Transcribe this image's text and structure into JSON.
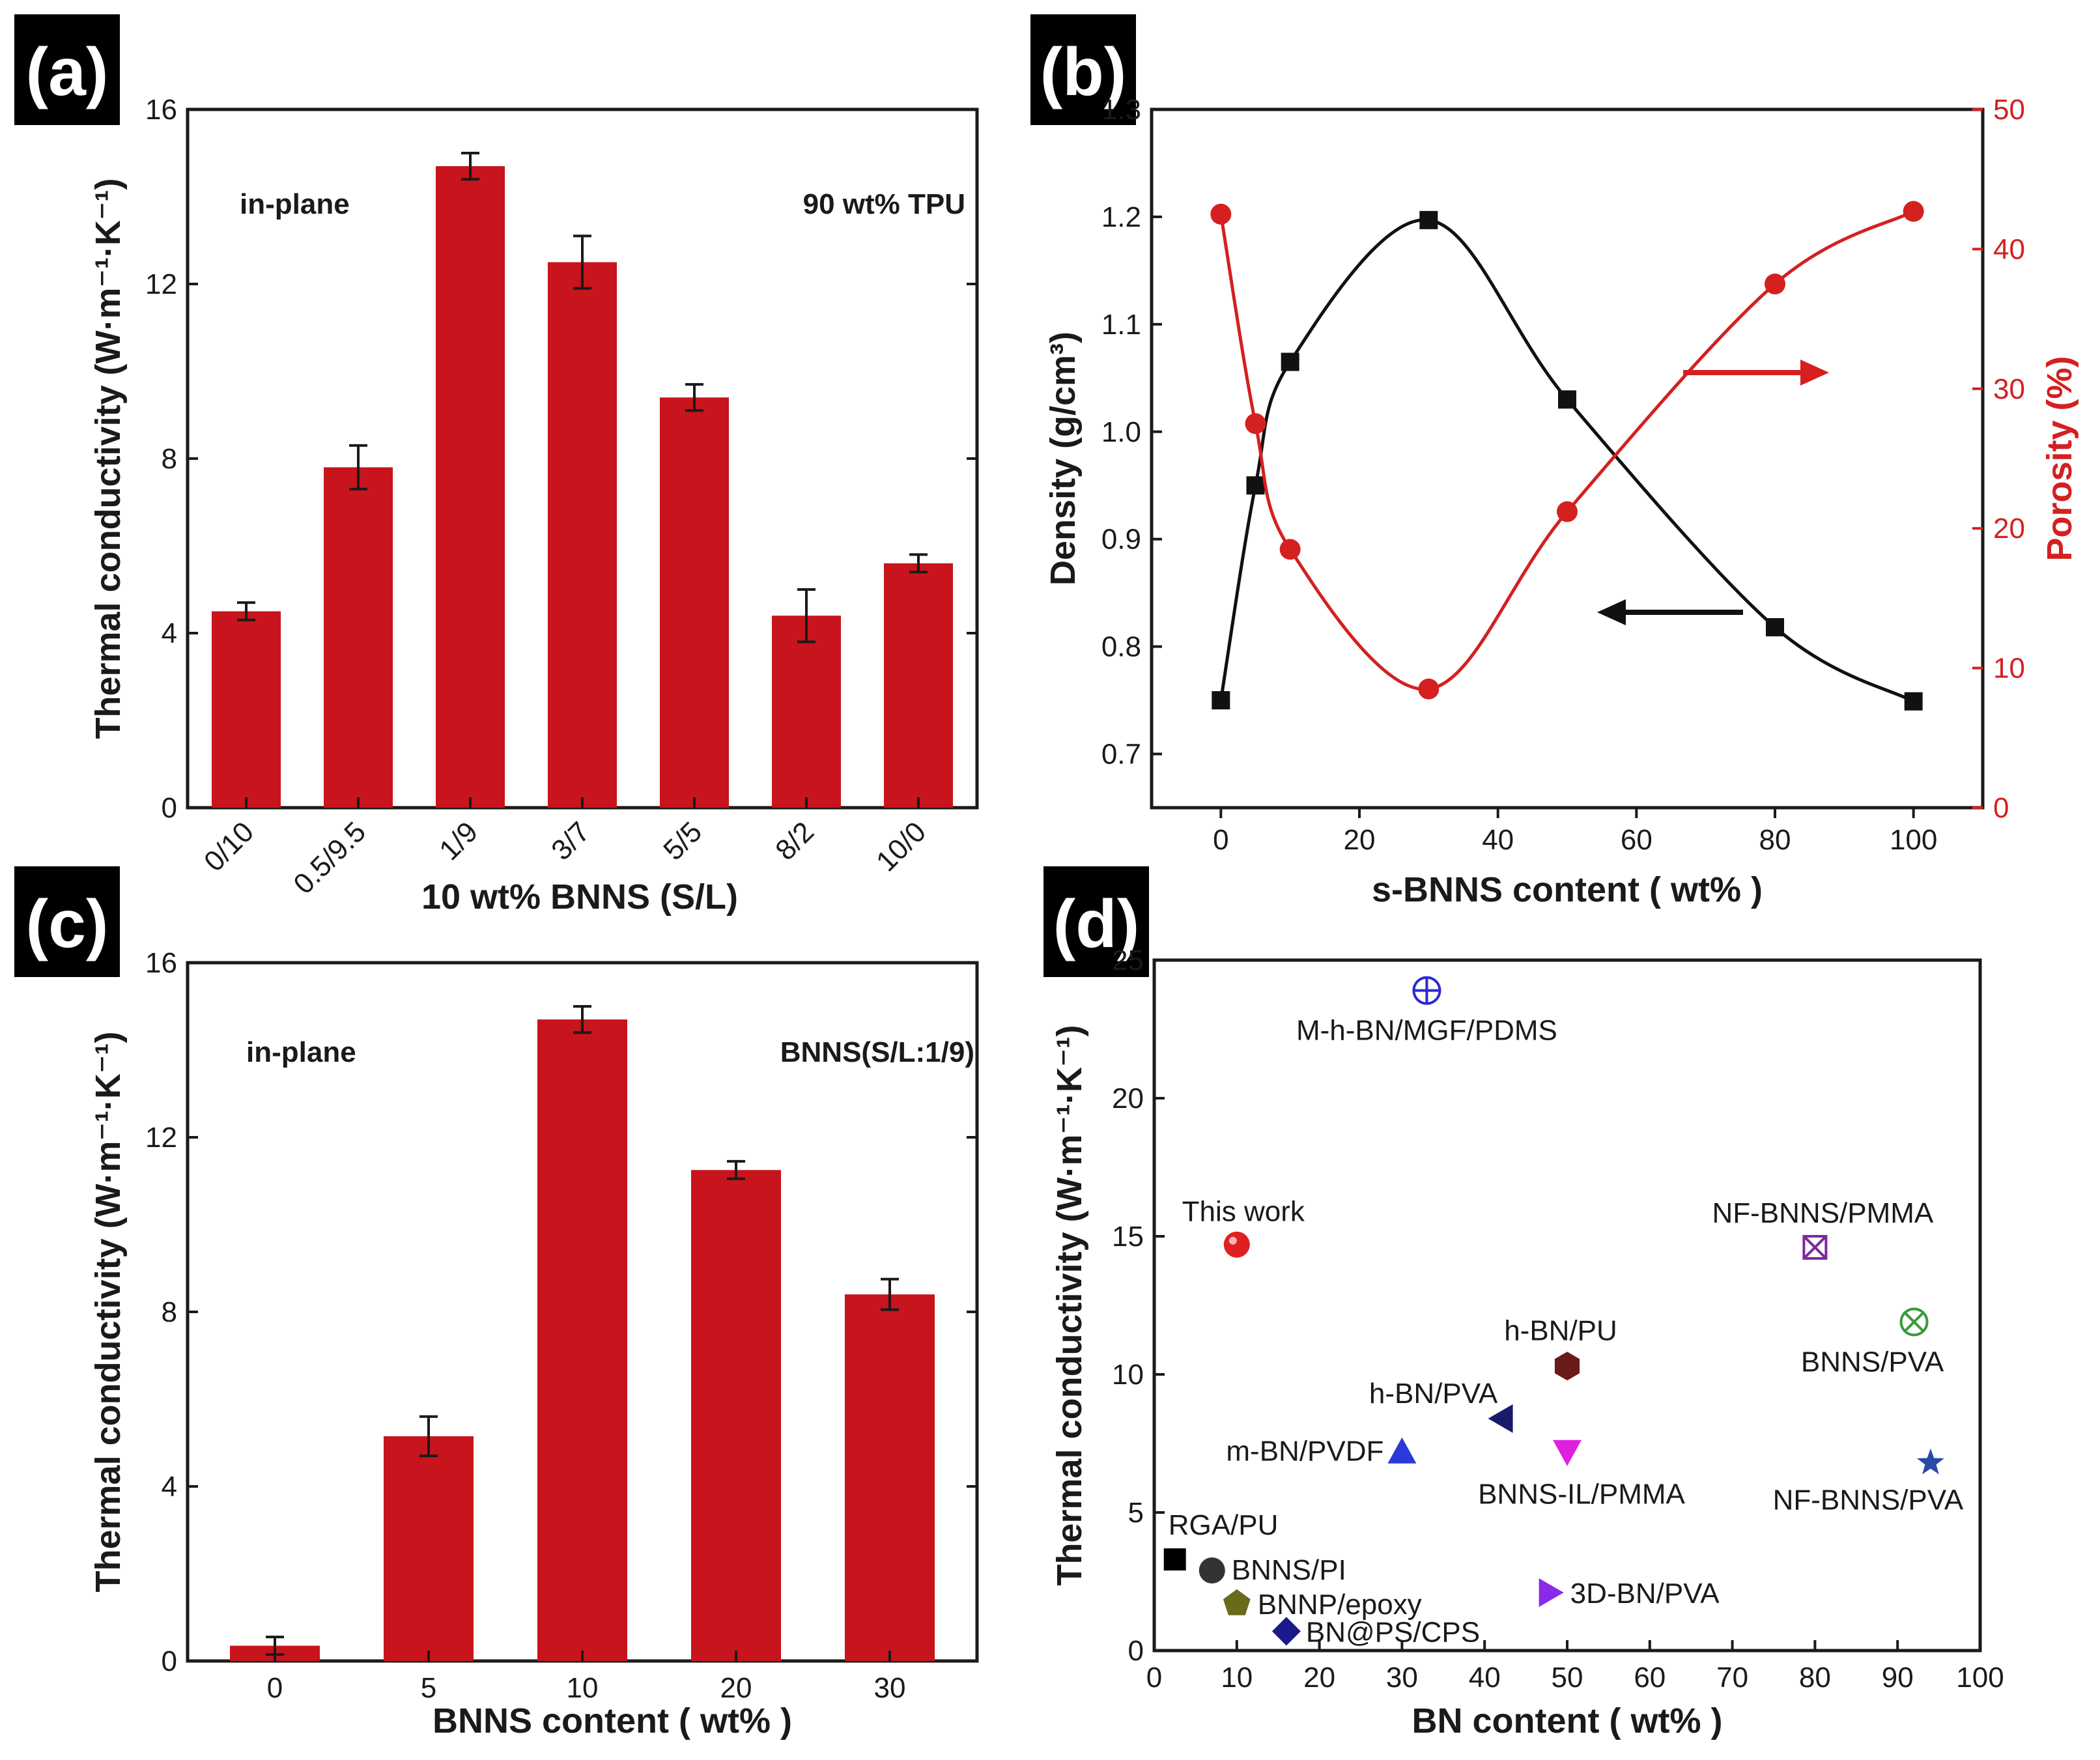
{
  "figure": {
    "panel_labels": [
      "(a)",
      "(b)",
      "(c)",
      "(d)"
    ]
  },
  "colors": {
    "bar": "#c8141c",
    "red_series": "#d42020",
    "black_series": "#111111",
    "panel_label_bg": "#000000"
  },
  "chart_data": [
    {
      "panel": "(a)",
      "type": "bar",
      "categories": [
        "0/10",
        "0.5/9.5",
        "1/9",
        "3/7",
        "5/5",
        "8/2",
        "10/0"
      ],
      "values": [
        4.5,
        7.8,
        14.7,
        12.5,
        9.4,
        4.4,
        5.6
      ],
      "errors": [
        0.2,
        0.5,
        0.3,
        0.6,
        0.3,
        0.6,
        0.2
      ],
      "xlabel": "10 wt% BNNS (S/L)",
      "ylabel": "Thermal conductivity (W·m⁻¹·K⁻¹)",
      "ylim": [
        0,
        16
      ],
      "yticks": [
        0,
        4,
        8,
        12,
        16
      ],
      "annotations": [
        "in-plane",
        "90 wt% TPU"
      ]
    },
    {
      "panel": "(b)",
      "type": "line",
      "x": [
        0,
        5,
        10,
        30,
        50,
        80,
        100
      ],
      "series": [
        {
          "name": "Density",
          "axis": "left",
          "values": [
            0.75,
            0.95,
            1.065,
            1.197,
            1.03,
            0.818,
            0.749
          ]
        },
        {
          "name": "Porosity",
          "axis": "right",
          "values": [
            42.5,
            27.5,
            18.5,
            8.5,
            21.2,
            37.5,
            42.7
          ]
        }
      ],
      "xlabel": "s-BNNS content ( wt% )",
      "ylabel_left": "Density (g/cm³)",
      "ylabel_right": "Porosity (%)",
      "xlim": [
        -10,
        110
      ],
      "xticks": [
        0,
        20,
        40,
        60,
        80,
        100
      ],
      "ylim_left": [
        0.65,
        1.3
      ],
      "yticks_left": [
        "0.7",
        "0.8",
        "0.9",
        "1.0",
        "1.1",
        "1.2",
        "1.3"
      ],
      "ylim_right": [
        0,
        50
      ],
      "yticks_right": [
        0,
        10,
        20,
        30,
        40,
        50
      ]
    },
    {
      "panel": "(c)",
      "type": "bar",
      "categories": [
        "0",
        "5",
        "10",
        "20",
        "30"
      ],
      "values": [
        0.35,
        5.15,
        14.7,
        11.25,
        8.4
      ],
      "errors": [
        0.2,
        0.45,
        0.3,
        0.2,
        0.35
      ],
      "xlabel": "BNNS content ( wt% )",
      "ylabel": "Thermal conductivity (W·m⁻¹·K⁻¹)",
      "ylim": [
        0,
        16
      ],
      "yticks": [
        0,
        4,
        8,
        12,
        16
      ],
      "annotations": [
        "in-plane",
        "BNNS(S/L:1/9)"
      ]
    },
    {
      "panel": "(d)",
      "type": "scatter",
      "xlabel": "BN content ( wt% )",
      "ylabel": "Thermal conductivity (W·m⁻¹·K⁻¹)",
      "xlim": [
        0,
        100
      ],
      "xticks": [
        0,
        10,
        20,
        30,
        40,
        50,
        60,
        70,
        80,
        90,
        100
      ],
      "ylim": [
        0,
        25
      ],
      "yticks": [
        0,
        5,
        10,
        15,
        20,
        25
      ],
      "points": [
        {
          "label": "M-h-BN/MGF/PDMS",
          "x": 33,
          "y": 23.9,
          "marker": "circle-plus",
          "color": "#2a2ad6"
        },
        {
          "label": "This work",
          "x": 10,
          "y": 14.7,
          "marker": "sphere",
          "color": "#e02020"
        },
        {
          "label": "NF-BNNS/PMMA",
          "x": 80,
          "y": 14.6,
          "marker": "square-x",
          "color": "#7a2a9c"
        },
        {
          "label": "BNNS/PVA",
          "x": 92,
          "y": 11.9,
          "marker": "circle-x",
          "color": "#3a9a3a"
        },
        {
          "label": "h-BN/PU",
          "x": 50,
          "y": 10.3,
          "marker": "hexagon",
          "color": "#6a1a1a"
        },
        {
          "label": "h-BN/PVA",
          "x": 42,
          "y": 8.4,
          "marker": "triangle-left",
          "color": "#1a1a6a"
        },
        {
          "label": "m-BN/PVDF",
          "x": 30,
          "y": 7.2,
          "marker": "triangle-up",
          "color": "#2a3ad8"
        },
        {
          "label": "BNNS-IL/PMMA",
          "x": 50,
          "y": 7.2,
          "marker": "triangle-down",
          "color": "#e020e0"
        },
        {
          "label": "NF-BNNS/PVA",
          "x": 94,
          "y": 6.8,
          "marker": "star",
          "color": "#2a4aa8"
        },
        {
          "label": "RGA/PU",
          "x": 2.5,
          "y": 3.3,
          "marker": "square",
          "color": "#000000"
        },
        {
          "label": "BNNS/PI",
          "x": 7,
          "y": 2.9,
          "marker": "circle",
          "color": "#333333"
        },
        {
          "label": "BNNP/epoxy",
          "x": 10,
          "y": 1.7,
          "marker": "pentagon",
          "color": "#6a6a1a"
        },
        {
          "label": "3D-BN/PVA",
          "x": 48,
          "y": 2.1,
          "marker": "triangle-right",
          "color": "#8a2ae8"
        },
        {
          "label": "BN@PS/CPS",
          "x": 16,
          "y": 0.7,
          "marker": "diamond",
          "color": "#1a1a8a"
        }
      ]
    }
  ]
}
